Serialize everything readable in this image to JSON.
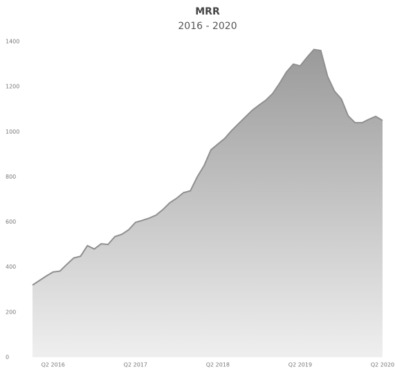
{
  "chart_data": {
    "type": "area",
    "title": "MRR",
    "subtitle": "2016 - 2020",
    "categories": [
      null,
      null,
      null,
      "Q2 2016",
      null,
      null,
      null,
      null,
      null,
      null,
      null,
      null,
      null,
      null,
      null,
      "Q2 2017",
      null,
      null,
      null,
      null,
      null,
      null,
      null,
      null,
      null,
      null,
      null,
      "Q2 2018",
      null,
      null,
      null,
      null,
      null,
      null,
      null,
      null,
      null,
      null,
      null,
      "Q2 2019",
      null,
      null,
      null,
      null,
      null,
      null,
      null,
      null,
      null,
      null,
      null,
      "Q2 2020"
    ],
    "values": [
      320,
      340,
      360,
      378,
      382,
      412,
      440,
      448,
      495,
      480,
      503,
      500,
      535,
      545,
      565,
      598,
      607,
      617,
      630,
      655,
      685,
      705,
      730,
      738,
      800,
      850,
      920,
      945,
      970,
      1005,
      1035,
      1065,
      1095,
      1118,
      1140,
      1170,
      1215,
      1265,
      1300,
      1292,
      1330,
      1365,
      1360,
      1245,
      1180,
      1145,
      1070,
      1040,
      1040,
      1055,
      1068,
      1050
    ],
    "color": "#8f8f8f",
    "ylim": [
      0,
      1400
    ],
    "yticks": [
      0,
      200,
      400,
      600,
      800,
      1000,
      1200,
      1400
    ]
  }
}
